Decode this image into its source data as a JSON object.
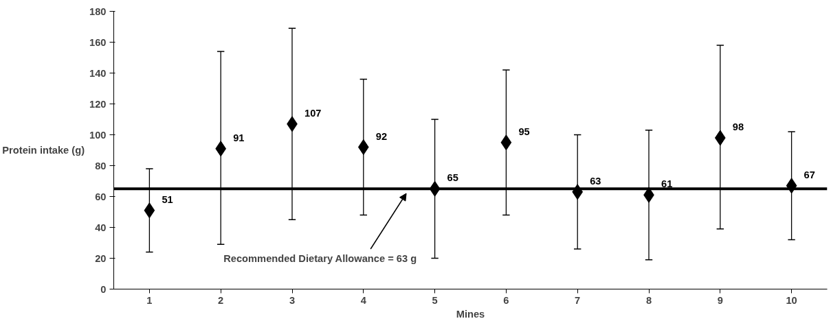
{
  "chart_data": {
    "type": "scatter",
    "xlabel": "Mines",
    "ylabel": "Protein intake (g)",
    "categories": [
      "1",
      "2",
      "3",
      "4",
      "5",
      "6",
      "7",
      "8",
      "9",
      "10"
    ],
    "values": [
      51,
      91,
      107,
      92,
      65,
      95,
      63,
      61,
      98,
      67
    ],
    "errors": [
      [
        24,
        78
      ],
      [
        29,
        154
      ],
      [
        45,
        169
      ],
      [
        48,
        136
      ],
      [
        20,
        110
      ],
      [
        48,
        142
      ],
      [
        26,
        100
      ],
      [
        19,
        103
      ],
      [
        39,
        158
      ],
      [
        32,
        102
      ]
    ],
    "color": "#000000",
    "marker": "diamond",
    "data_labels": true,
    "ylim": [
      0,
      180
    ],
    "yticks": [
      0,
      20,
      40,
      60,
      80,
      100,
      120,
      140,
      160,
      180
    ],
    "grid": false,
    "ref_lines": [
      {
        "axis": "y",
        "value": 65,
        "color": "#000000"
      }
    ],
    "annotations": [
      "Recommended Dietary Allowance = 63 g"
    ]
  }
}
